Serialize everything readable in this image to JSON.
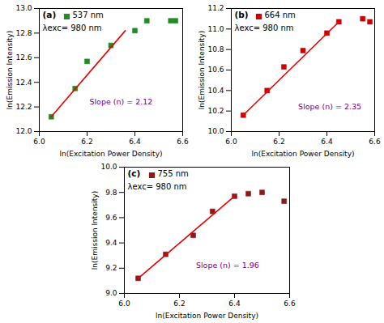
{
  "chart_data": [
    {
      "type": "scatter",
      "xlabel": "ln(Excitation Power Density)",
      "ylabel": "ln(Emission Intensity)",
      "xlim": [
        6.0,
        6.6
      ],
      "xticks": [
        {
          "value": 6.0,
          "label": "6.0"
        },
        6.2,
        6.4,
        6.6
      ],
      "ylim": [
        12.0,
        13.0
      ],
      "yticks": [
        {
          "value": 12.0,
          "label": "12.0"
        },
        12.2,
        12.4,
        12.6,
        12.8,
        {
          "value": 13.0,
          "label": "13.0"
        }
      ],
      "grid": false,
      "legend": "upper left",
      "series": [
        {
          "name": "537 nm",
          "type": "scatter",
          "color": "#228B22",
          "marker": "square",
          "x": [
            6.05,
            6.15,
            6.2,
            6.3,
            6.4,
            6.45,
            6.55,
            6.57
          ],
          "values": [
            12.12,
            12.35,
            12.57,
            12.7,
            12.82,
            12.9,
            12.9,
            12.9
          ]
        },
        {
          "type": "line",
          "color": "#EE0000",
          "line_style": "solid",
          "x": [
            6.05,
            6.36
          ],
          "values": [
            12.12,
            12.82
          ]
        }
      ],
      "annotations": [
        {
          "text": "(a)"
        },
        {
          "text": "λexc= 980 nm"
        },
        {
          "text": "Slope (n) = 2.12",
          "x": 6.21,
          "y": 12.22,
          "color": "#7B0080"
        }
      ]
    },
    {
      "type": "scatter",
      "xlabel": "ln(Excitation Power Density)",
      "ylabel": "ln(Emission Intensity)",
      "xlim": [
        6.0,
        6.6
      ],
      "xticks": [
        {
          "value": 6.0,
          "label": "6.0"
        },
        6.2,
        6.4,
        6.6
      ],
      "ylim": [
        10.0,
        11.2
      ],
      "yticks": [
        {
          "value": 10.0,
          "label": "10.0"
        },
        10.2,
        10.4,
        10.6,
        10.8,
        {
          "value": 11.0,
          "label": "11.0"
        },
        11.2
      ],
      "grid": false,
      "legend": "upper left",
      "series": [
        {
          "name": "664 nm",
          "type": "scatter",
          "color": "#CC0000",
          "marker": "square",
          "x": [
            6.05,
            6.15,
            6.22,
            6.3,
            6.4,
            6.45,
            6.55,
            6.58
          ],
          "values": [
            10.16,
            10.4,
            10.63,
            10.79,
            10.96,
            11.07,
            11.1,
            11.07
          ]
        },
        {
          "type": "line",
          "color": "#EE0000",
          "line_style": "solid",
          "x": [
            6.05,
            6.45
          ],
          "values": [
            10.16,
            11.07
          ]
        }
      ],
      "annotations": [
        {
          "text": "(b)"
        },
        {
          "text": "λexc= 980 nm"
        },
        {
          "text": "Slope (n) = 2.35",
          "x": 6.28,
          "y": 10.22,
          "color": "#7B0080"
        }
      ]
    },
    {
      "type": "scatter",
      "xlabel": "ln(Excitation Power Density)",
      "ylabel": "ln(Emission Intensity)",
      "xlim": [
        6.0,
        6.6
      ],
      "xticks": [
        {
          "value": 6.0,
          "label": "6.0"
        },
        6.2,
        6.4,
        6.6
      ],
      "ylim": [
        9.0,
        10.0
      ],
      "yticks": [
        {
          "value": 9.0,
          "label": "9.0"
        },
        9.2,
        9.4,
        9.6,
        9.8,
        {
          "value": 10.0,
          "label": "10.0"
        }
      ],
      "grid": false,
      "legend": "upper left",
      "series": [
        {
          "name": "755 nm",
          "type": "scatter",
          "color": "#8B1A1A",
          "marker": "square",
          "x": [
            6.05,
            6.15,
            6.25,
            6.32,
            6.4,
            6.45,
            6.5,
            6.58
          ],
          "values": [
            9.12,
            9.31,
            9.46,
            9.65,
            9.77,
            9.79,
            9.8,
            9.73
          ]
        },
        {
          "type": "line",
          "color": "#EE0000",
          "line_style": "solid",
          "x": [
            6.05,
            6.4
          ],
          "values": [
            9.12,
            9.77
          ]
        }
      ],
      "annotations": [
        {
          "text": "(c)"
        },
        {
          "text": "λexc= 980 nm"
        },
        {
          "text": "Slope (n) = 1.96",
          "x": 6.26,
          "y": 9.2,
          "color": "#7B0080"
        }
      ]
    }
  ]
}
